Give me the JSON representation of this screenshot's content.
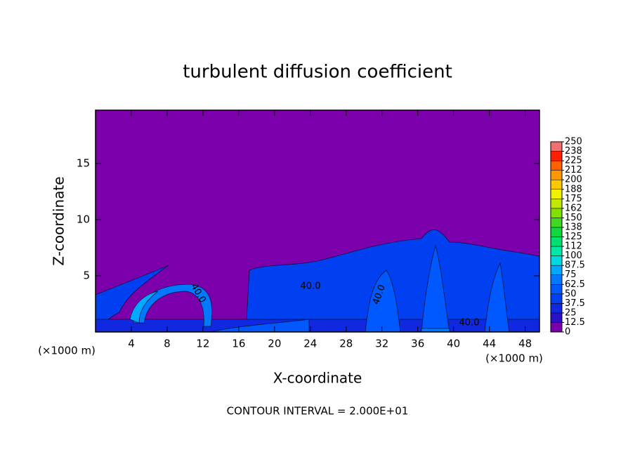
{
  "chart_data": {
    "type": "contour",
    "title": "turbulent diffusion coefficient",
    "x_label": "X-coordinate",
    "y_label": "Z-coordinate",
    "x_unit": "(×1000 m)",
    "footer": "CONTOUR INTERVAL = 2.000E+01",
    "contour_labels": [
      "40.0",
      "40.0",
      "40.0",
      "40.0"
    ],
    "xlim": [
      0,
      49.6
    ],
    "ylim": [
      0,
      19.75
    ],
    "xticks": [
      4,
      8,
      12,
      16,
      20,
      24,
      28,
      32,
      36,
      40,
      44,
      48
    ],
    "yticks": [
      5,
      10,
      15
    ],
    "background_color": "#7b00ac",
    "colorbar": {
      "levels": [
        0,
        12.5,
        25,
        37.5,
        50,
        62.5,
        75,
        87.5,
        100,
        112,
        125,
        138,
        150,
        162,
        175,
        188,
        200,
        212,
        225,
        238,
        250
      ],
      "colors": [
        "#7b00ac",
        "#2a10c8",
        "#1028e0",
        "#0040f0",
        "#0058ff",
        "#0078ff",
        "#00a8ff",
        "#00d8e0",
        "#00e8a8",
        "#00e070",
        "#10d840",
        "#40d820",
        "#80e000",
        "#c0e800",
        "#f0f000",
        "#ffc800",
        "#ff9800",
        "#ff6000",
        "#ff2000",
        "#f07070"
      ]
    }
  }
}
